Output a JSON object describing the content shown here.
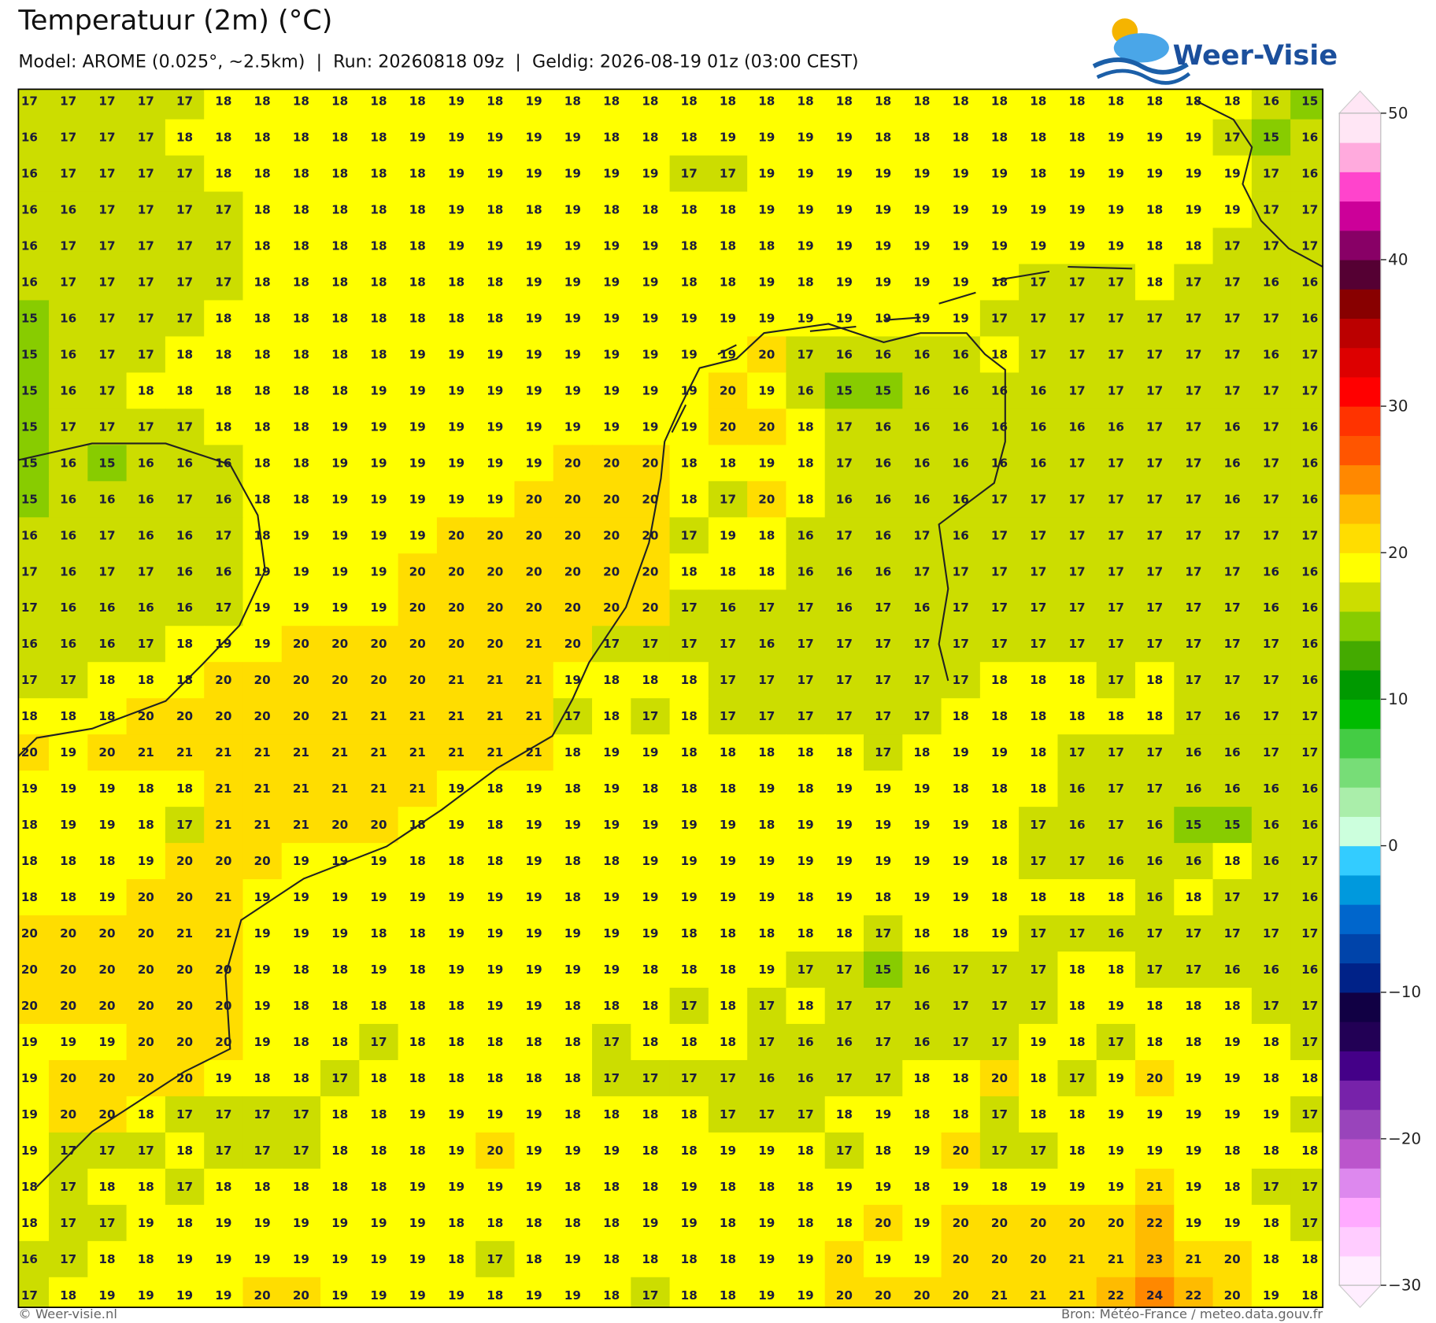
{
  "header": {
    "title": "Temperatuur (2m) (°C)",
    "subtitle": "Model: AROME (0.025°, ~2.5km)  |  Run: 20260818 09z  |  Geldig: 2026-08-19 01z (03:00 CEST)"
  },
  "logo": "Weer-Visie",
  "map": {
    "values": [
      [
        17,
        17,
        17,
        17,
        17,
        18,
        18,
        18,
        18,
        18,
        18,
        19,
        18,
        19,
        18,
        18,
        18,
        18,
        18,
        18,
        18,
        18,
        18,
        18,
        18,
        18,
        18,
        18,
        18,
        18,
        18,
        18,
        16,
        15
      ],
      [
        16,
        17,
        17,
        17,
        18,
        18,
        18,
        18,
        18,
        18,
        19,
        19,
        19,
        19,
        19,
        18,
        18,
        18,
        19,
        19,
        19,
        19,
        18,
        18,
        18,
        18,
        18,
        18,
        19,
        19,
        19,
        17,
        15,
        16
      ],
      [
        16,
        17,
        17,
        17,
        17,
        18,
        18,
        18,
        18,
        18,
        18,
        19,
        19,
        19,
        19,
        19,
        19,
        17,
        17,
        19,
        19,
        19,
        19,
        19,
        19,
        19,
        18,
        19,
        19,
        19,
        19,
        19,
        17,
        16
      ],
      [
        16,
        16,
        17,
        17,
        17,
        17,
        18,
        18,
        18,
        18,
        18,
        19,
        18,
        18,
        19,
        18,
        18,
        18,
        18,
        19,
        19,
        19,
        19,
        19,
        19,
        19,
        19,
        19,
        19,
        18,
        19,
        19,
        17,
        17
      ],
      [
        16,
        17,
        17,
        17,
        17,
        17,
        18,
        18,
        18,
        18,
        18,
        19,
        19,
        19,
        19,
        19,
        19,
        18,
        18,
        18,
        19,
        19,
        19,
        19,
        19,
        19,
        19,
        19,
        19,
        18,
        18,
        17,
        17,
        17
      ],
      [
        16,
        17,
        17,
        17,
        17,
        17,
        18,
        18,
        18,
        18,
        18,
        18,
        18,
        19,
        19,
        19,
        19,
        18,
        18,
        19,
        18,
        19,
        19,
        19,
        19,
        18,
        17,
        17,
        17,
        18,
        17,
        17,
        16,
        16
      ],
      [
        15,
        16,
        17,
        17,
        17,
        18,
        18,
        18,
        18,
        18,
        18,
        18,
        18,
        19,
        19,
        19,
        19,
        19,
        19,
        19,
        19,
        19,
        19,
        19,
        19,
        17,
        17,
        17,
        17,
        17,
        17,
        17,
        17,
        16
      ],
      [
        15,
        16,
        17,
        17,
        18,
        18,
        18,
        18,
        18,
        18,
        19,
        19,
        19,
        19,
        19,
        19,
        19,
        19,
        19,
        20,
        17,
        16,
        16,
        16,
        16,
        18,
        17,
        17,
        17,
        17,
        17,
        17,
        16,
        17
      ],
      [
        15,
        16,
        17,
        18,
        18,
        18,
        18,
        18,
        18,
        19,
        19,
        19,
        19,
        19,
        19,
        19,
        19,
        19,
        20,
        19,
        16,
        15,
        15,
        16,
        16,
        16,
        16,
        17,
        17,
        17,
        17,
        17,
        17,
        17
      ],
      [
        15,
        17,
        17,
        17,
        17,
        18,
        18,
        18,
        19,
        19,
        19,
        19,
        19,
        19,
        19,
        19,
        19,
        19,
        20,
        20,
        18,
        17,
        16,
        16,
        16,
        16,
        16,
        16,
        16,
        17,
        17,
        16,
        17,
        16
      ],
      [
        15,
        16,
        15,
        16,
        16,
        16,
        18,
        18,
        19,
        19,
        19,
        19,
        19,
        19,
        20,
        20,
        20,
        18,
        18,
        19,
        18,
        17,
        16,
        16,
        16,
        16,
        16,
        17,
        17,
        17,
        17,
        16,
        17,
        16
      ],
      [
        15,
        16,
        16,
        16,
        17,
        16,
        18,
        18,
        19,
        19,
        19,
        19,
        19,
        20,
        20,
        20,
        20,
        18,
        17,
        20,
        18,
        16,
        16,
        16,
        16,
        17,
        17,
        17,
        17,
        17,
        17,
        16,
        17,
        16
      ],
      [
        16,
        16,
        17,
        16,
        16,
        17,
        18,
        19,
        19,
        19,
        19,
        20,
        20,
        20,
        20,
        20,
        20,
        17,
        19,
        18,
        16,
        17,
        16,
        17,
        16,
        17,
        17,
        17,
        17,
        17,
        17,
        17,
        17,
        17
      ],
      [
        17,
        16,
        17,
        17,
        16,
        16,
        19,
        19,
        19,
        19,
        20,
        20,
        20,
        20,
        20,
        20,
        20,
        18,
        18,
        18,
        16,
        16,
        16,
        17,
        17,
        17,
        17,
        17,
        17,
        17,
        17,
        17,
        16,
        16
      ],
      [
        17,
        16,
        16,
        16,
        16,
        17,
        19,
        19,
        19,
        19,
        20,
        20,
        20,
        20,
        20,
        20,
        20,
        17,
        16,
        17,
        17,
        16,
        17,
        16,
        17,
        17,
        17,
        17,
        17,
        17,
        17,
        17,
        16,
        16
      ],
      [
        16,
        16,
        16,
        17,
        18,
        19,
        19,
        20,
        20,
        20,
        20,
        20,
        20,
        21,
        20,
        17,
        17,
        17,
        17,
        16,
        17,
        17,
        17,
        17,
        17,
        17,
        17,
        17,
        17,
        17,
        17,
        17,
        17,
        16
      ],
      [
        17,
        17,
        18,
        18,
        18,
        20,
        20,
        20,
        20,
        20,
        20,
        21,
        21,
        21,
        19,
        18,
        18,
        18,
        17,
        17,
        17,
        17,
        17,
        17,
        17,
        18,
        18,
        18,
        17,
        18,
        17,
        17,
        17,
        16
      ],
      [
        18,
        18,
        18,
        20,
        20,
        20,
        20,
        20,
        21,
        21,
        21,
        21,
        21,
        21,
        17,
        18,
        17,
        18,
        17,
        17,
        17,
        17,
        17,
        17,
        18,
        18,
        18,
        18,
        18,
        18,
        17,
        16,
        17,
        17
      ],
      [
        20,
        19,
        20,
        21,
        21,
        21,
        21,
        21,
        21,
        21,
        21,
        21,
        21,
        21,
        18,
        19,
        19,
        18,
        18,
        18,
        18,
        18,
        17,
        18,
        19,
        19,
        18,
        17,
        17,
        17,
        16,
        16,
        17,
        17
      ],
      [
        19,
        19,
        19,
        18,
        18,
        21,
        21,
        21,
        21,
        21,
        21,
        19,
        18,
        19,
        18,
        19,
        18,
        18,
        18,
        19,
        18,
        19,
        19,
        19,
        18,
        18,
        18,
        16,
        17,
        17,
        16,
        16,
        16,
        16
      ],
      [
        18,
        19,
        19,
        18,
        17,
        21,
        21,
        21,
        20,
        20,
        18,
        19,
        18,
        19,
        19,
        19,
        19,
        19,
        19,
        18,
        19,
        19,
        19,
        19,
        19,
        18,
        17,
        16,
        17,
        16,
        15,
        15,
        16,
        16
      ],
      [
        18,
        18,
        18,
        19,
        20,
        20,
        20,
        19,
        19,
        19,
        18,
        18,
        18,
        19,
        18,
        18,
        19,
        19,
        19,
        19,
        19,
        19,
        19,
        19,
        19,
        18,
        17,
        17,
        16,
        16,
        16,
        18,
        16,
        17
      ],
      [
        18,
        18,
        19,
        20,
        20,
        21,
        19,
        19,
        19,
        19,
        19,
        19,
        19,
        19,
        18,
        19,
        19,
        19,
        19,
        19,
        18,
        19,
        18,
        19,
        19,
        18,
        18,
        18,
        18,
        16,
        18,
        17,
        17,
        16
      ],
      [
        20,
        20,
        20,
        20,
        21,
        21,
        19,
        19,
        19,
        18,
        18,
        19,
        19,
        19,
        19,
        19,
        19,
        18,
        18,
        18,
        18,
        18,
        17,
        18,
        18,
        19,
        17,
        17,
        16,
        17,
        17,
        17,
        17,
        17
      ],
      [
        20,
        20,
        20,
        20,
        20,
        20,
        19,
        18,
        18,
        19,
        18,
        19,
        19,
        19,
        19,
        19,
        18,
        18,
        18,
        19,
        17,
        17,
        15,
        16,
        17,
        17,
        17,
        18,
        18,
        17,
        17,
        16,
        16,
        16
      ],
      [
        20,
        20,
        20,
        20,
        20,
        20,
        19,
        18,
        18,
        18,
        18,
        18,
        19,
        19,
        18,
        18,
        18,
        17,
        18,
        17,
        18,
        17,
        17,
        16,
        17,
        17,
        17,
        18,
        19,
        18,
        18,
        18,
        17,
        17
      ],
      [
        19,
        19,
        19,
        20,
        20,
        20,
        19,
        18,
        18,
        17,
        18,
        18,
        18,
        18,
        18,
        17,
        18,
        18,
        18,
        17,
        16,
        16,
        17,
        16,
        17,
        17,
        19,
        18,
        17,
        18,
        18,
        19,
        18,
        17
      ],
      [
        19,
        20,
        20,
        20,
        20,
        19,
        18,
        18,
        17,
        18,
        18,
        18,
        18,
        18,
        18,
        17,
        17,
        17,
        17,
        16,
        16,
        17,
        17,
        18,
        18,
        20,
        18,
        17,
        19,
        20,
        19,
        19,
        18,
        18
      ],
      [
        19,
        20,
        20,
        18,
        17,
        17,
        17,
        17,
        18,
        18,
        19,
        19,
        19,
        19,
        18,
        18,
        18,
        18,
        17,
        17,
        17,
        18,
        19,
        18,
        18,
        17,
        18,
        18,
        19,
        19,
        19,
        19,
        19,
        17
      ],
      [
        19,
        17,
        17,
        17,
        18,
        17,
        17,
        17,
        18,
        18,
        18,
        19,
        20,
        19,
        19,
        19,
        18,
        18,
        19,
        19,
        18,
        17,
        18,
        19,
        20,
        17,
        17,
        18,
        19,
        19,
        19,
        18,
        18,
        18
      ],
      [
        18,
        17,
        18,
        18,
        17,
        18,
        18,
        18,
        18,
        18,
        19,
        19,
        19,
        19,
        18,
        18,
        18,
        19,
        18,
        18,
        18,
        19,
        19,
        18,
        19,
        18,
        19,
        19,
        19,
        21,
        19,
        18,
        17,
        17
      ],
      [
        18,
        17,
        17,
        19,
        18,
        19,
        19,
        19,
        19,
        19,
        19,
        18,
        18,
        18,
        18,
        18,
        19,
        19,
        18,
        19,
        18,
        18,
        20,
        19,
        20,
        20,
        20,
        20,
        20,
        22,
        19,
        19,
        18,
        17
      ],
      [
        16,
        17,
        18,
        18,
        19,
        19,
        19,
        19,
        19,
        19,
        19,
        18,
        17,
        18,
        19,
        18,
        18,
        18,
        18,
        19,
        19,
        20,
        19,
        19,
        20,
        20,
        20,
        21,
        21,
        23,
        21,
        20,
        18,
        18
      ],
      [
        17,
        18,
        19,
        19,
        19,
        19,
        20,
        20,
        19,
        19,
        19,
        19,
        18,
        19,
        19,
        18,
        17,
        18,
        18,
        19,
        19,
        20,
        20,
        20,
        20,
        21,
        21,
        21,
        22,
        24,
        22,
        20,
        19,
        18
      ]
    ]
  },
  "colorbar": {
    "lim": [
      -30,
      50
    ],
    "ticks": [
      {
        "value": -30,
        "label": "−30"
      },
      {
        "value": -20,
        "label": "−20"
      },
      {
        "value": -10,
        "label": "−10"
      },
      0,
      10,
      20,
      30,
      40,
      50
    ],
    "colors": [
      "#ffeeff",
      "#ffccff",
      "#ffaaff",
      "#dd88ee",
      "#bb55cc",
      "#9944bb",
      "#7722aa",
      "#440088",
      "#220055",
      "#110044",
      "#002288",
      "#0044aa",
      "#0066cc",
      "#0099dd",
      "#33ccff",
      "#ccffdd",
      "#aaeeaa",
      "#77dd77",
      "#44cc44",
      "#00bb00",
      "#009900",
      "#44aa00",
      "#88cc00",
      "#ccdd00",
      "#ffff00",
      "#ffdd00",
      "#ffbb00",
      "#ff8800",
      "#ff5500",
      "#ff3300",
      "#ff0000",
      "#dd0000",
      "#bb0000",
      "#880000",
      "#550033",
      "#880066",
      "#cc0099",
      "#ff44cc",
      "#ffaadd",
      "#ffe6f5"
    ]
  },
  "footer": {
    "left": "© Weer-visie.nl",
    "right": "Bron: Météo-France / meteo.data.gouv.fr"
  }
}
